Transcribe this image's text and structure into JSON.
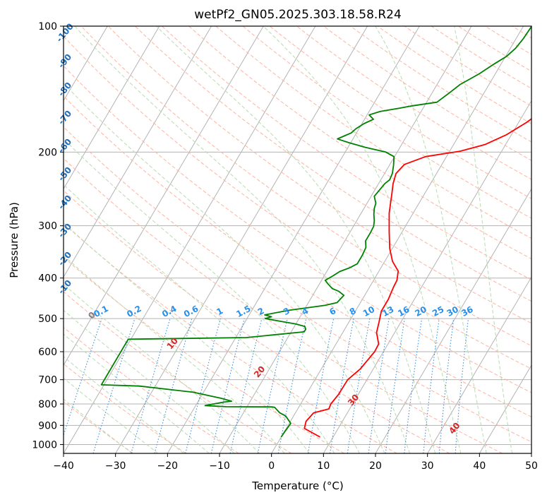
{
  "chart_data": {
    "type": "line",
    "title": "wetPf2_GN05.2025.303.18.58.R24",
    "xlabel": "Temperature (°C)",
    "ylabel": "Pressure (hPa)",
    "xlim": [
      -40,
      50
    ],
    "ylim": [
      1050,
      100
    ],
    "y_scale": "log",
    "grid": true,
    "x_ticks": [
      "−40",
      "−30",
      "−20",
      "−10",
      "0",
      "10",
      "20",
      "30",
      "40",
      "50"
    ],
    "y_ticks": [
      "100",
      "200",
      "300",
      "400",
      "500",
      "600",
      "700",
      "800",
      "900",
      "1000"
    ],
    "series": [
      {
        "color": "#ff0000",
        "role": "temperature",
        "points": [
          [
            7.5,
            960
          ],
          [
            3.5,
            915
          ],
          [
            3.0,
            880
          ],
          [
            3.5,
            840
          ],
          [
            6.0,
            822
          ],
          [
            5.8,
            800
          ],
          [
            6.2,
            760
          ],
          [
            6.3,
            700
          ],
          [
            7.5,
            660
          ],
          [
            8.3,
            600
          ],
          [
            8.2,
            575
          ],
          [
            6.5,
            540
          ],
          [
            5.8,
            510
          ],
          [
            5.0,
            480
          ],
          [
            5.0,
            450
          ],
          [
            4.6,
            420
          ],
          [
            4.5,
            405
          ],
          [
            3.7,
            385
          ],
          [
            1.5,
            365
          ],
          [
            -0.5,
            340
          ],
          [
            -2.5,
            310
          ],
          [
            -4.6,
            280
          ],
          [
            -6.4,
            250
          ],
          [
            -7.2,
            238
          ],
          [
            -7.8,
            225
          ],
          [
            -7.2,
            214
          ],
          [
            -4.0,
            205
          ],
          [
            2.0,
            199
          ],
          [
            6.0,
            192
          ],
          [
            9.0,
            182
          ],
          [
            11.5,
            170
          ],
          [
            13.5,
            158
          ],
          [
            14.9,
            149
          ],
          [
            16.4,
            140
          ],
          [
            18.0,
            132
          ],
          [
            19.4,
            126
          ],
          [
            20.7,
            120
          ],
          [
            21.9,
            114
          ],
          [
            23.3,
            108
          ],
          [
            25.4,
            100
          ]
        ]
      },
      {
        "color": "#008000",
        "role": "dewpoint",
        "points": [
          [
            0.0,
            960
          ],
          [
            0.1,
            930
          ],
          [
            0.3,
            890
          ],
          [
            -1.5,
            855
          ],
          [
            -3.0,
            840
          ],
          [
            -4.6,
            815
          ],
          [
            -5.2,
            813
          ],
          [
            -14.0,
            812
          ],
          [
            -18.2,
            807
          ],
          [
            -15.0,
            792
          ],
          [
            -13.6,
            788
          ],
          [
            -16.0,
            775
          ],
          [
            -22.0,
            750
          ],
          [
            -33.0,
            725
          ],
          [
            -40.5,
            720
          ],
          [
            -40.5,
            560
          ],
          [
            -18.0,
            555
          ],
          [
            -7.5,
            538
          ],
          [
            -7.5,
            530
          ],
          [
            -8.0,
            522
          ],
          [
            -10.0,
            515
          ],
          [
            -13.0,
            508
          ],
          [
            -16.5,
            500
          ],
          [
            -15.5,
            495
          ],
          [
            -17.0,
            490
          ],
          [
            -13.0,
            478
          ],
          [
            -6.5,
            465
          ],
          [
            -4.5,
            458
          ],
          [
            -4.0,
            440
          ],
          [
            -5.5,
            430
          ],
          [
            -7.0,
            424
          ],
          [
            -8.5,
            412
          ],
          [
            -9.3,
            405
          ],
          [
            -8.3,
            395
          ],
          [
            -7.5,
            386
          ],
          [
            -6.0,
            378
          ],
          [
            -5.0,
            370
          ],
          [
            -5.0,
            353
          ],
          [
            -5.2,
            338
          ],
          [
            -6.0,
            326
          ],
          [
            -6.0,
            313
          ],
          [
            -6.1,
            301
          ],
          [
            -6.6,
            292
          ],
          [
            -7.4,
            282
          ],
          [
            -8.0,
            273
          ],
          [
            -8.3,
            265
          ],
          [
            -9.4,
            255
          ],
          [
            -8.8,
            238
          ],
          [
            -8.3,
            233
          ],
          [
            -8.5,
            225
          ],
          [
            -9.2,
            215
          ],
          [
            -10.1,
            205
          ],
          [
            -12.2,
            200
          ],
          [
            -16.6,
            195
          ],
          [
            -20.3,
            190
          ],
          [
            -23.0,
            186
          ],
          [
            -22.0,
            183
          ],
          [
            -21.0,
            180
          ],
          [
            -20.6,
            176
          ],
          [
            -19.6,
            171
          ],
          [
            -18.3,
            167
          ],
          [
            -19.6,
            163
          ],
          [
            -17.9,
            160
          ],
          [
            -14.5,
            157
          ],
          [
            -12.3,
            155
          ],
          [
            -8.0,
            152
          ],
          [
            -6.6,
            144
          ],
          [
            -5.6,
            138
          ],
          [
            -3.1,
            130
          ],
          [
            -1.3,
            123
          ],
          [
            0.2,
            118
          ],
          [
            1.0,
            113
          ],
          [
            1.4,
            107
          ],
          [
            1.6,
            100
          ]
        ]
      }
    ],
    "dry_adiabat_labels": [
      "-100",
      "-90",
      "-80",
      "-70",
      "-60",
      "-50",
      "-40",
      "-30",
      "-20",
      "-10",
      "0",
      "10",
      "20",
      "30",
      "40"
    ],
    "mixing_ratio_labels": [
      "0.1",
      "0.2",
      "0.4",
      "0.6",
      "1",
      "1.5",
      "2",
      "3",
      "4",
      "6",
      "8",
      "10",
      "13",
      "16",
      "20",
      "25",
      "30",
      "36"
    ],
    "colors": {
      "isotherm": "#b3b3b3",
      "isobar": "#b3b3b3",
      "dry_adiabat": "#ffb3a0",
      "moist_adiabat": "#b8dbb0",
      "mixing_ratio": "#3a8fe0",
      "dry_label_cold": "#1f6fbf",
      "dry_label_warm": "#d62728",
      "mixing_label": "#2a8fe8",
      "zero_label": "#808080"
    }
  }
}
